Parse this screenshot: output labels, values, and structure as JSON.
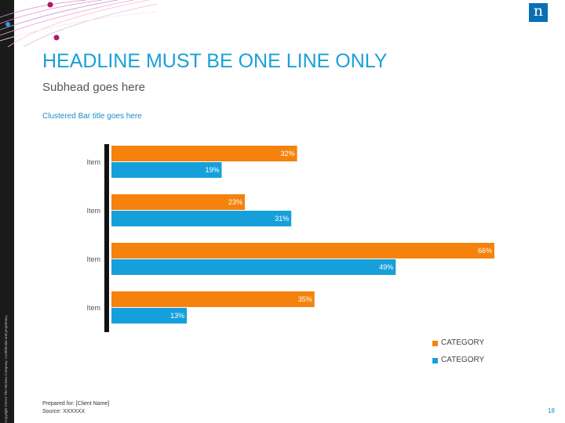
{
  "slide": {
    "headline": "HEADLINE MUST BE ONE LINE ONLY",
    "subhead": "Subhead goes here",
    "logo_text": "n",
    "copyright": "Copyright ©2012 The Nielsen Company. Confidential and proprietary.",
    "prepared_for": "Prepared for: [Client Name]",
    "source": "Source: XXXXXX",
    "page_number": "18"
  },
  "colors": {
    "accent": "#1aa0d8",
    "series_orange": "#f5820d",
    "series_blue": "#16a0db"
  },
  "chart_data": {
    "type": "bar",
    "orientation": "horizontal",
    "title": "Clustered Bar title goes here",
    "categories": [
      "Item",
      "Item",
      "Item",
      "Item"
    ],
    "series": [
      {
        "name": "CATEGORY",
        "color": "#f5820d",
        "values": [
          32,
          23,
          66,
          35
        ],
        "labels": [
          "32%",
          "23%",
          "66%",
          "35%"
        ]
      },
      {
        "name": "CATEGORY",
        "color": "#16a0db",
        "values": [
          19,
          31,
          49,
          13
        ],
        "labels": [
          "19%",
          "31%",
          "49%",
          "13%"
        ]
      }
    ],
    "unit": "%",
    "xlim": [
      0,
      66
    ],
    "grid": false,
    "legend": "bottom-right"
  }
}
